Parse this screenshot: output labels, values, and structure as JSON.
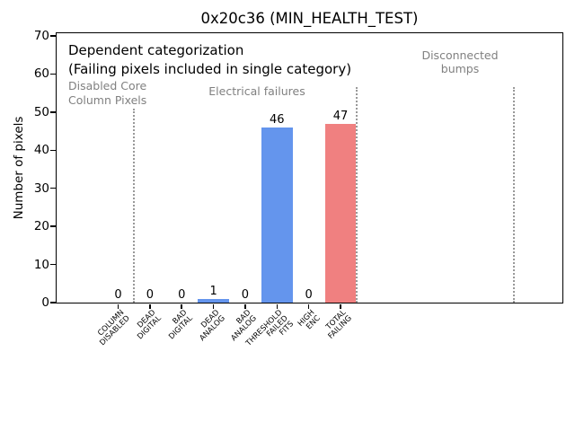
{
  "figure": {
    "title": "0x20c36 (MIN_HEALTH_TEST)"
  },
  "chart_data": {
    "type": "bar",
    "title": "0x20c36 (MIN_HEALTH_TEST)",
    "xlabel": "",
    "ylabel": "Number of pixels",
    "ylim": [
      0,
      70.7
    ],
    "yticks": [
      0,
      10,
      20,
      30,
      40,
      50,
      60,
      70
    ],
    "grid": false,
    "legend": "none",
    "categories": [
      "COLUMN\nDISABLED",
      "DEAD\nDIGITAL",
      "BAD\nDIGITAL",
      "DEAD\nANALOG",
      "BAD\nANALOG",
      "THRESHOLD\nFAILED\nFITS",
      "HIGH\nENC",
      "TOTAL\nFAILING"
    ],
    "values": [
      0,
      0,
      0,
      1,
      0,
      46,
      0,
      47
    ],
    "bar_value_labels": [
      "0",
      "0",
      "0",
      "1",
      "0",
      "46",
      "0",
      "47"
    ],
    "bar_colors": [
      "#6495ED",
      "#6495ED",
      "#6495ED",
      "#6495ED",
      "#6495ED",
      "#6495ED",
      "#6495ED",
      "#F08080"
    ],
    "annotations": {
      "note_line1": "Dependent categorization",
      "note_line2": "(Failing pixels included in single category)",
      "sections": [
        {
          "label": "Disabled Core\nColumn Pixels",
          "color": "#808080"
        },
        {
          "label": "Electrical failures",
          "color": "#808080"
        },
        {
          "label": "Disconnected\nbumps",
          "color": "#808080"
        }
      ]
    },
    "dividers": [
      {
        "at_category_boundary": 0.5,
        "y_extent": 51
      },
      {
        "at_category_boundary": 7.5,
        "y_extent": 56.5
      },
      {
        "at_category_boundary": 12.45,
        "y_extent": 56.5
      }
    ],
    "colors": {
      "bar_blue": "#6495ED",
      "bar_red": "#F08080",
      "gray_text": "#808080",
      "divider_gray": "#999999"
    }
  }
}
